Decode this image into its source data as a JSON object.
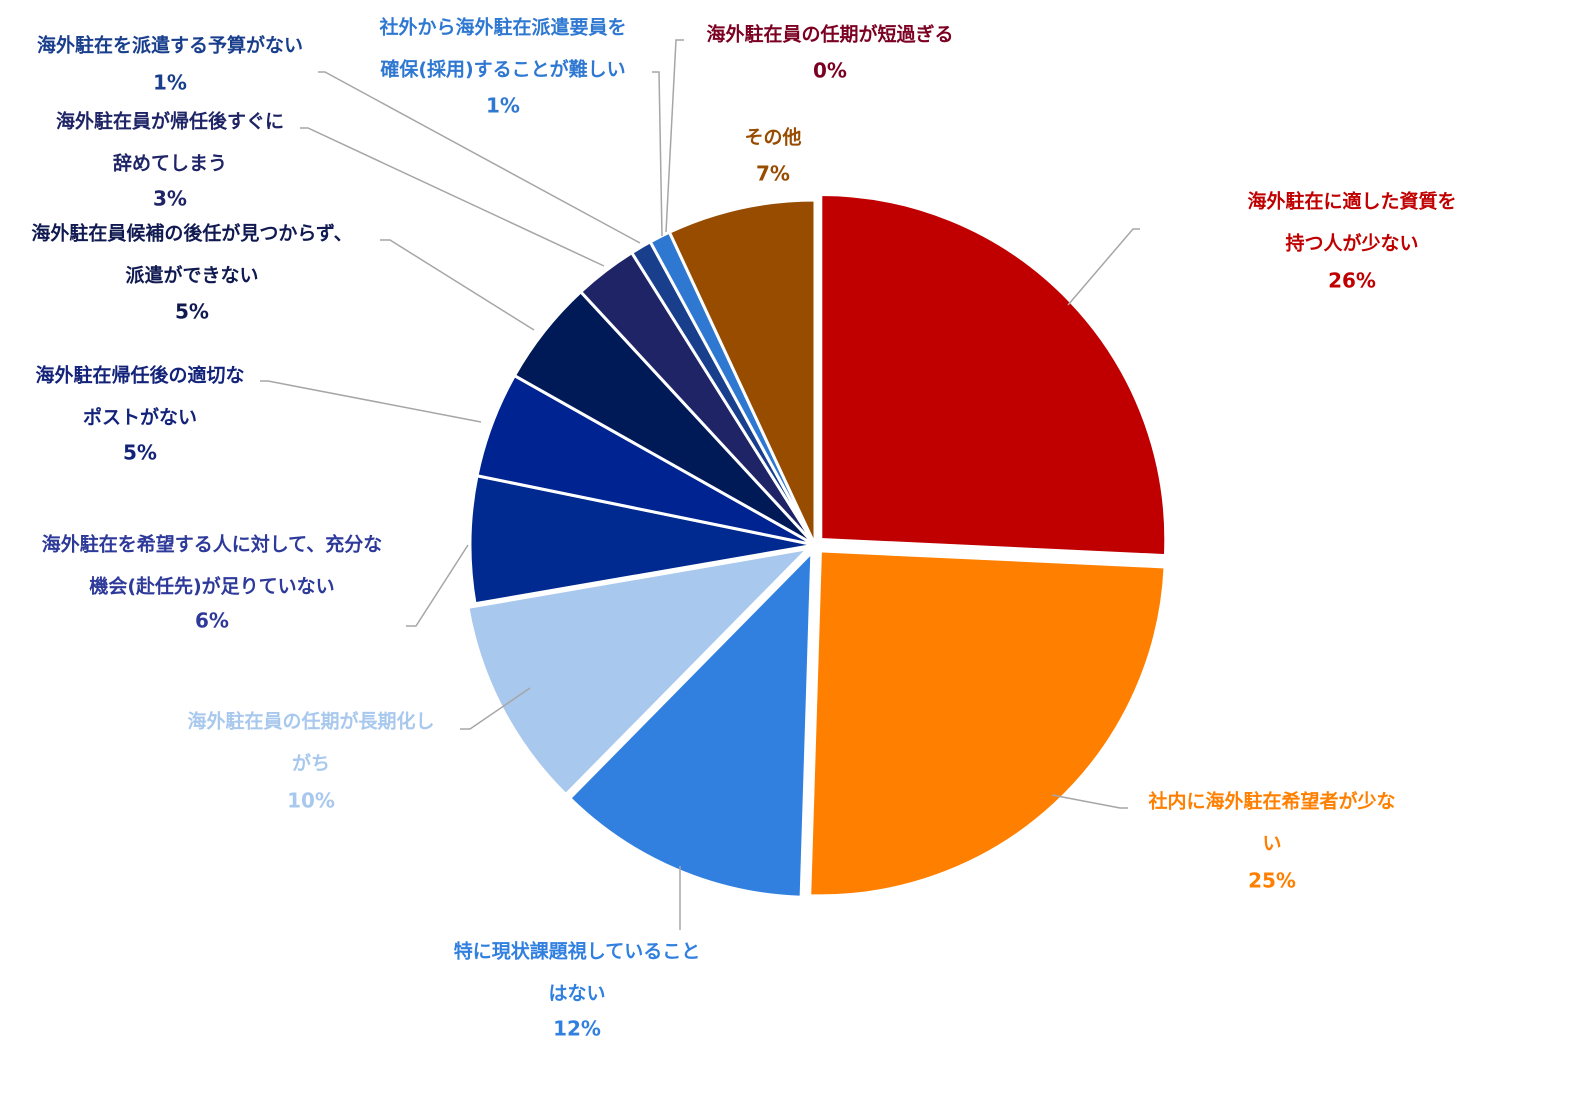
{
  "chart_data": {
    "type": "pie",
    "title": "",
    "slices": [
      {
        "label_lines": [
          "海外駐在に適した資質を",
          "持つ人が少ない"
        ],
        "value": 26,
        "value_label": "26%",
        "color": "#c00000",
        "label_color": "#c00000"
      },
      {
        "label_lines": [
          "社内に海外駐在希望者が少な",
          "い"
        ],
        "value": 25,
        "value_label": "25%",
        "color": "#ff8000",
        "label_color": "#ff8000"
      },
      {
        "label_lines": [
          "特に現状課題視していること",
          "はない"
        ],
        "value": 12,
        "value_label": "12%",
        "color": "#3180e0",
        "label_color": "#3180e0"
      },
      {
        "label_lines": [
          "海外駐在員の任期が長期化し",
          "がち"
        ],
        "value": 10,
        "value_label": "10%",
        "color": "#a8c8ee",
        "label_color": "#a8c8ee"
      },
      {
        "label_lines": [
          "海外駐在を希望する人に対して、充分な",
          "機会(赴任先)が足りていない"
        ],
        "value": 6,
        "value_label": "6%",
        "color": "#002a90",
        "label_color": "#2e3a9a"
      },
      {
        "label_lines": [
          "海外駐在帰任後の適切な",
          "ポストがない"
        ],
        "value": 5,
        "value_label": "5%",
        "color": "#002392",
        "label_color": "#13237a"
      },
      {
        "label_lines": [
          "海外駐在員候補の後任が見つからず、",
          "派遣ができない"
        ],
        "value": 5,
        "value_label": "5%",
        "color": "#001a58",
        "label_color": "#101a50"
      },
      {
        "label_lines": [
          "海外駐在員が帰任後すぐに",
          "辞めてしまう"
        ],
        "value": 3,
        "value_label": "3%",
        "color": "#1e2466",
        "label_color": "#1e2466"
      },
      {
        "label_lines": [
          "海外駐在を派遣する予算がない"
        ],
        "value": 1,
        "value_label": "1%",
        "color": "#183e8c",
        "label_color": "#183e8c"
      },
      {
        "label_lines": [
          "社外から海外駐在派遣要員を",
          "確保(採用)することが難しい"
        ],
        "value": 1,
        "value_label": "1%",
        "color": "#2f78d2",
        "label_color": "#2f78d2"
      },
      {
        "label_lines": [
          "海外駐在員の任期が短過ぎる"
        ],
        "value": 0,
        "value_label": "0%",
        "color": "#7b0022",
        "label_color": "#7b0022"
      },
      {
        "label_lines": [
          "その他"
        ],
        "value": 7,
        "value_label": "7%",
        "color": "#974c00",
        "label_color": "#974c00"
      }
    ]
  }
}
